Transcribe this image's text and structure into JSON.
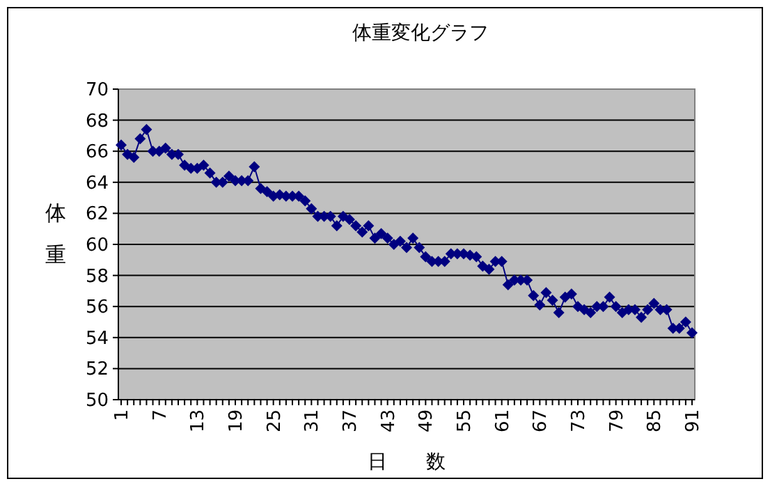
{
  "chart_data": {
    "type": "line",
    "title": "体重変化グラフ",
    "xlabel": "日　　数",
    "ylabel": "体重",
    "categories": [
      "1",
      null,
      null,
      null,
      null,
      null,
      "7",
      null,
      null,
      null,
      null,
      null,
      "13",
      null,
      null,
      null,
      null,
      null,
      "19",
      null,
      null,
      null,
      null,
      null,
      "25",
      null,
      null,
      null,
      null,
      null,
      "31",
      null,
      null,
      null,
      null,
      null,
      "37",
      null,
      null,
      null,
      null,
      null,
      "43",
      null,
      null,
      null,
      null,
      null,
      "49",
      null,
      null,
      null,
      null,
      null,
      "55",
      null,
      null,
      null,
      null,
      null,
      "61",
      null,
      null,
      null,
      null,
      null,
      "67",
      null,
      null,
      null,
      null,
      null,
      "73",
      null,
      null,
      null,
      null,
      null,
      "79",
      null,
      null,
      null,
      null,
      null,
      "85",
      null,
      null,
      null,
      null,
      null,
      "91"
    ],
    "series": [
      {
        "color": "#000080",
        "values": [
          66.4,
          65.8,
          65.6,
          66.8,
          67.4,
          66.0,
          66.0,
          66.2,
          65.8,
          65.8,
          65.1,
          64.9,
          64.9,
          65.1,
          64.6,
          64.0,
          64.0,
          64.4,
          64.1,
          64.1,
          64.1,
          65.0,
          63.6,
          63.4,
          63.1,
          63.2,
          63.1,
          63.1,
          63.1,
          62.8,
          62.3,
          61.8,
          61.8,
          61.8,
          61.2,
          61.8,
          61.6,
          61.2,
          60.8,
          61.2,
          60.4,
          60.7,
          60.4,
          60.0,
          60.2,
          59.8,
          60.4,
          59.8,
          59.2,
          58.9,
          58.9,
          58.9,
          59.4,
          59.4,
          59.4,
          59.3,
          59.2,
          58.6,
          58.4,
          58.9,
          58.9,
          57.4,
          57.7,
          57.7,
          57.7,
          56.7,
          56.1,
          56.9,
          56.4,
          55.6,
          56.6,
          56.8,
          56.0,
          55.8,
          55.6,
          56.0,
          56.0,
          56.6,
          56.0,
          55.6,
          55.8,
          55.8,
          55.3,
          55.8,
          56.2,
          55.8,
          55.8,
          54.6,
          54.6,
          55.0,
          54.3
        ]
      }
    ],
    "ylim": [
      50,
      70
    ],
    "yticks": [
      50,
      52,
      54,
      56,
      58,
      60,
      62,
      64,
      66,
      68,
      70
    ],
    "grid": "y",
    "marker": "diamond",
    "line_style": "solid"
  }
}
